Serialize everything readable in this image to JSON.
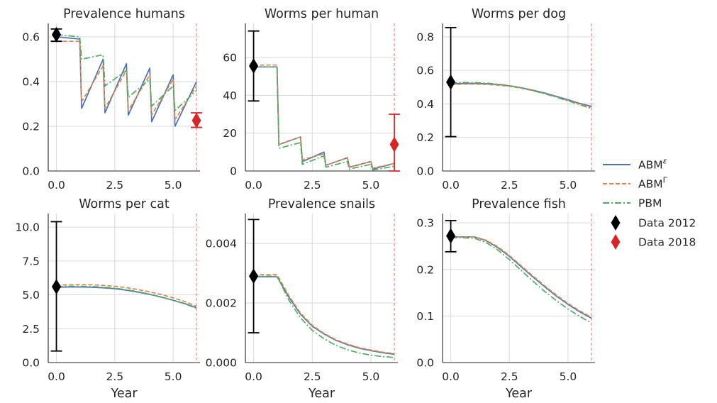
{
  "colors": {
    "abm_eps": "#4c72b0",
    "abm_gamma": "#dd8452",
    "pbm": "#55a868",
    "data2012": "#000000",
    "data2018": "#d62728",
    "vline": "#f07070",
    "grid": "#d9d9d9",
    "axis": "#262626"
  },
  "legend": {
    "abm_eps_base": "ABM",
    "abm_eps_sup": "ε",
    "abm_gamma_base": "ABM",
    "abm_gamma_sup": "Γ",
    "pbm": "PBM",
    "data2012": "Data 2012",
    "data2018": "Data 2018"
  },
  "chart_data": [
    {
      "type": "line",
      "title": "Prevalence humans",
      "xlabel": "",
      "xlim": [
        -0.35,
        6.15
      ],
      "ylim": [
        0,
        0.66
      ],
      "xticks": [
        0,
        2.5,
        5
      ],
      "xtick_labels": [
        "0.0",
        "2.5",
        "5.0"
      ],
      "yticks": [
        0,
        0.2,
        0.4,
        0.6
      ],
      "ytick_labels": [
        "0.0",
        "0.2",
        "0.4",
        "0.6"
      ],
      "vline_x": 6,
      "series": [
        {
          "name": "ABMε",
          "x": [
            0,
            1,
            1.08,
            2,
            2.08,
            3,
            3.08,
            4,
            4.08,
            5,
            5.08,
            6
          ],
          "y": [
            0.6,
            0.59,
            0.28,
            0.5,
            0.26,
            0.48,
            0.25,
            0.46,
            0.22,
            0.43,
            0.2,
            0.4
          ]
        },
        {
          "name": "ABMΓ",
          "x": [
            0,
            1,
            1.08,
            2,
            2.08,
            3,
            3.08,
            4,
            4.08,
            5,
            5.08,
            6
          ],
          "y": [
            0.58,
            0.58,
            0.31,
            0.47,
            0.28,
            0.45,
            0.27,
            0.43,
            0.25,
            0.41,
            0.23,
            0.38
          ]
        },
        {
          "name": "PBM",
          "x": [
            0,
            1,
            1.08,
            2,
            2.08,
            3,
            3.08,
            4,
            4.08,
            5,
            5.08,
            6
          ],
          "y": [
            0.61,
            0.6,
            0.5,
            0.52,
            0.38,
            0.45,
            0.33,
            0.41,
            0.29,
            0.38,
            0.27,
            0.36
          ]
        }
      ],
      "points": [
        {
          "name": "Data 2012",
          "x": 0,
          "y": 0.61,
          "low": 0.58,
          "high": 0.635
        },
        {
          "name": "Data 2018",
          "x": 6,
          "y": 0.226,
          "low": 0.195,
          "high": 0.26
        }
      ]
    },
    {
      "type": "line",
      "title": "Worms per human",
      "xlabel": "",
      "xlim": [
        -0.35,
        6.15
      ],
      "ylim": [
        0,
        78
      ],
      "xticks": [
        0,
        2.5,
        5
      ],
      "xtick_labels": [
        "0.0",
        "2.5",
        "5.0"
      ],
      "yticks": [
        0,
        20,
        40,
        60
      ],
      "ytick_labels": [
        "0",
        "20",
        "40",
        "60"
      ],
      "vline_x": 6,
      "series": [
        {
          "name": "ABMε",
          "x": [
            0,
            1,
            1.08,
            2,
            2.08,
            3,
            3.08,
            4,
            4.08,
            5,
            5.08,
            6
          ],
          "y": [
            55,
            55,
            14,
            18,
            5,
            10,
            3,
            7,
            2,
            5,
            1,
            4
          ]
        },
        {
          "name": "ABMΓ",
          "x": [
            0,
            1,
            1.08,
            2,
            2.08,
            3,
            3.08,
            4,
            4.08,
            5,
            5.08,
            6
          ],
          "y": [
            56,
            56,
            14,
            18,
            6,
            9,
            3,
            7,
            2,
            5,
            1.5,
            4
          ]
        },
        {
          "name": "PBM",
          "x": [
            0,
            1,
            1.08,
            2,
            2.08,
            3,
            3.08,
            4,
            4.08,
            5,
            5.08,
            6
          ],
          "y": [
            55,
            55,
            12,
            15,
            3.5,
            8,
            2,
            5,
            1,
            3.5,
            0.5,
            2.5
          ]
        }
      ],
      "points": [
        {
          "name": "Data 2012",
          "x": 0,
          "y": 55.5,
          "low": 37,
          "high": 74
        },
        {
          "name": "Data 2018",
          "x": 6,
          "y": 14,
          "low": 0,
          "high": 30
        }
      ]
    },
    {
      "type": "line",
      "title": "Worms per dog",
      "xlabel": "",
      "xlim": [
        -0.35,
        6.15
      ],
      "ylim": [
        0,
        0.88
      ],
      "xticks": [
        0,
        2.5,
        5
      ],
      "xtick_labels": [
        "0.0",
        "2.5",
        "5.0"
      ],
      "yticks": [
        0,
        0.2,
        0.4,
        0.6,
        0.8
      ],
      "ytick_labels": [
        "0.0",
        "0.2",
        "0.4",
        "0.6",
        "0.8"
      ],
      "vline_x": 6,
      "series": [
        {
          "name": "ABMε",
          "x": [
            0,
            0.5,
            1,
            1.5,
            2,
            2.5,
            3,
            3.5,
            4,
            4.5,
            5,
            5.5,
            6
          ],
          "y": [
            0.52,
            0.522,
            0.522,
            0.52,
            0.516,
            0.508,
            0.497,
            0.482,
            0.465,
            0.445,
            0.425,
            0.403,
            0.385
          ]
        },
        {
          "name": "ABMΓ",
          "x": [
            0,
            0.5,
            1,
            1.5,
            2,
            2.5,
            3,
            3.5,
            4,
            4.5,
            5,
            5.5,
            6
          ],
          "y": [
            0.515,
            0.518,
            0.518,
            0.516,
            0.512,
            0.505,
            0.494,
            0.479,
            0.462,
            0.442,
            0.421,
            0.399,
            0.38
          ]
        },
        {
          "name": "PBM",
          "x": [
            0,
            0.5,
            1,
            1.5,
            2,
            2.5,
            3,
            3.5,
            4,
            4.5,
            5,
            5.5,
            6
          ],
          "y": [
            0.525,
            0.528,
            0.527,
            0.524,
            0.518,
            0.509,
            0.496,
            0.48,
            0.461,
            0.44,
            0.418,
            0.395,
            0.372
          ]
        }
      ],
      "points": [
        {
          "name": "Data 2012",
          "x": 0,
          "y": 0.53,
          "low": 0.205,
          "high": 0.855
        }
      ]
    },
    {
      "type": "line",
      "title": "Worms per cat",
      "xlabel": "Year",
      "xlim": [
        -0.35,
        6.15
      ],
      "ylim": [
        0,
        11
      ],
      "xticks": [
        0,
        2.5,
        5
      ],
      "xtick_labels": [
        "0.0",
        "2.5",
        "5.0"
      ],
      "yticks": [
        0,
        2.5,
        5,
        7.5,
        10
      ],
      "ytick_labels": [
        "0.0",
        "2.5",
        "5.0",
        "7.5",
        "10.0"
      ],
      "vline_x": 6,
      "series": [
        {
          "name": "ABMε",
          "x": [
            0,
            0.5,
            1,
            1.5,
            2,
            2.5,
            3,
            3.5,
            4,
            4.5,
            5,
            5.5,
            6
          ],
          "y": [
            5.55,
            5.58,
            5.58,
            5.56,
            5.52,
            5.45,
            5.34,
            5.2,
            5.03,
            4.83,
            4.6,
            4.35,
            4.05
          ]
        },
        {
          "name": "ABMΓ",
          "x": [
            0,
            0.5,
            1,
            1.5,
            2,
            2.5,
            3,
            3.5,
            4,
            4.5,
            5,
            5.5,
            6
          ],
          "y": [
            5.7,
            5.74,
            5.75,
            5.74,
            5.7,
            5.63,
            5.53,
            5.39,
            5.22,
            5.02,
            4.78,
            4.5,
            4.15
          ]
        },
        {
          "name": "PBM",
          "x": [
            0,
            0.5,
            1,
            1.5,
            2,
            2.5,
            3,
            3.5,
            4,
            4.5,
            5,
            5.5,
            6
          ],
          "y": [
            5.6,
            5.63,
            5.63,
            5.61,
            5.56,
            5.49,
            5.38,
            5.23,
            5.05,
            4.84,
            4.6,
            4.33,
            4.0
          ]
        }
      ],
      "points": [
        {
          "name": "Data 2012",
          "x": 0,
          "y": 5.6,
          "low": 0.85,
          "high": 10.4
        }
      ]
    },
    {
      "type": "line",
      "title": "Prevalence snails",
      "xlabel": "Year",
      "xlim": [
        -0.35,
        6.15
      ],
      "ylim": [
        0,
        0.005
      ],
      "xticks": [
        0,
        2.5,
        5
      ],
      "xtick_labels": [
        "0.0",
        "2.5",
        "5.0"
      ],
      "yticks": [
        0,
        0.002,
        0.004
      ],
      "ytick_labels": [
        "0.000",
        "0.002",
        "0.004"
      ],
      "vline_x": 6,
      "series": [
        {
          "name": "ABMε",
          "x": [
            0,
            0.5,
            1,
            1.5,
            2,
            2.5,
            3,
            3.5,
            4,
            4.5,
            5,
            5.5,
            6
          ],
          "y": [
            0.00288,
            0.00288,
            0.00288,
            0.0022,
            0.00162,
            0.00122,
            0.00096,
            0.00075,
            0.0006,
            0.00048,
            0.0004,
            0.00033,
            0.00028
          ]
        },
        {
          "name": "ABMΓ",
          "x": [
            0,
            0.5,
            1,
            1.5,
            2,
            2.5,
            3,
            3.5,
            4,
            4.5,
            5,
            5.5,
            6
          ],
          "y": [
            0.00295,
            0.00295,
            0.00295,
            0.00225,
            0.00166,
            0.00125,
            0.00098,
            0.00077,
            0.00062,
            0.0005,
            0.00042,
            0.00035,
            0.0003
          ]
        },
        {
          "name": "PBM",
          "x": [
            0,
            0.5,
            1,
            1.5,
            2,
            2.5,
            3,
            3.5,
            4,
            4.5,
            5,
            5.5,
            6
          ],
          "y": [
            0.0029,
            0.0029,
            0.0029,
            0.0021,
            0.0015,
            0.00108,
            0.0008,
            0.00058,
            0.00043,
            0.00032,
            0.00025,
            0.0002,
            0.00017
          ]
        }
      ],
      "points": [
        {
          "name": "Data 2012",
          "x": 0,
          "y": 0.0029,
          "low": 0.001,
          "high": 0.0048
        }
      ]
    },
    {
      "type": "line",
      "title": "Prevalence fish",
      "xlabel": "Year",
      "xlim": [
        -0.35,
        6.15
      ],
      "ylim": [
        0,
        0.32
      ],
      "xticks": [
        0,
        2.5,
        5
      ],
      "xtick_labels": [
        "0.0",
        "2.5",
        "5.0"
      ],
      "yticks": [
        0,
        0.1,
        0.2,
        0.3
      ],
      "ytick_labels": [
        "0.0",
        "0.1",
        "0.2",
        "0.3"
      ],
      "vline_x": 6,
      "series": [
        {
          "name": "ABMε",
          "x": [
            0,
            0.5,
            1,
            1.5,
            2,
            2.5,
            3,
            3.5,
            4,
            4.5,
            5,
            5.5,
            6
          ],
          "y": [
            0.27,
            0.27,
            0.27,
            0.262,
            0.247,
            0.228,
            0.206,
            0.184,
            0.163,
            0.143,
            0.125,
            0.109,
            0.095
          ]
        },
        {
          "name": "ABMΓ",
          "x": [
            0,
            0.5,
            1,
            1.5,
            2,
            2.5,
            3,
            3.5,
            4,
            4.5,
            5,
            5.5,
            6
          ],
          "y": [
            0.27,
            0.27,
            0.27,
            0.263,
            0.249,
            0.23,
            0.208,
            0.186,
            0.165,
            0.145,
            0.127,
            0.111,
            0.097
          ]
        },
        {
          "name": "PBM",
          "x": [
            0,
            0.5,
            1,
            1.5,
            2,
            2.5,
            3,
            3.5,
            4,
            4.5,
            5,
            5.5,
            6
          ],
          "y": [
            0.268,
            0.268,
            0.267,
            0.258,
            0.242,
            0.221,
            0.198,
            0.175,
            0.153,
            0.133,
            0.115,
            0.099,
            0.085
          ]
        }
      ],
      "points": [
        {
          "name": "Data 2012",
          "x": 0,
          "y": 0.272,
          "low": 0.238,
          "high": 0.305
        }
      ]
    }
  ]
}
